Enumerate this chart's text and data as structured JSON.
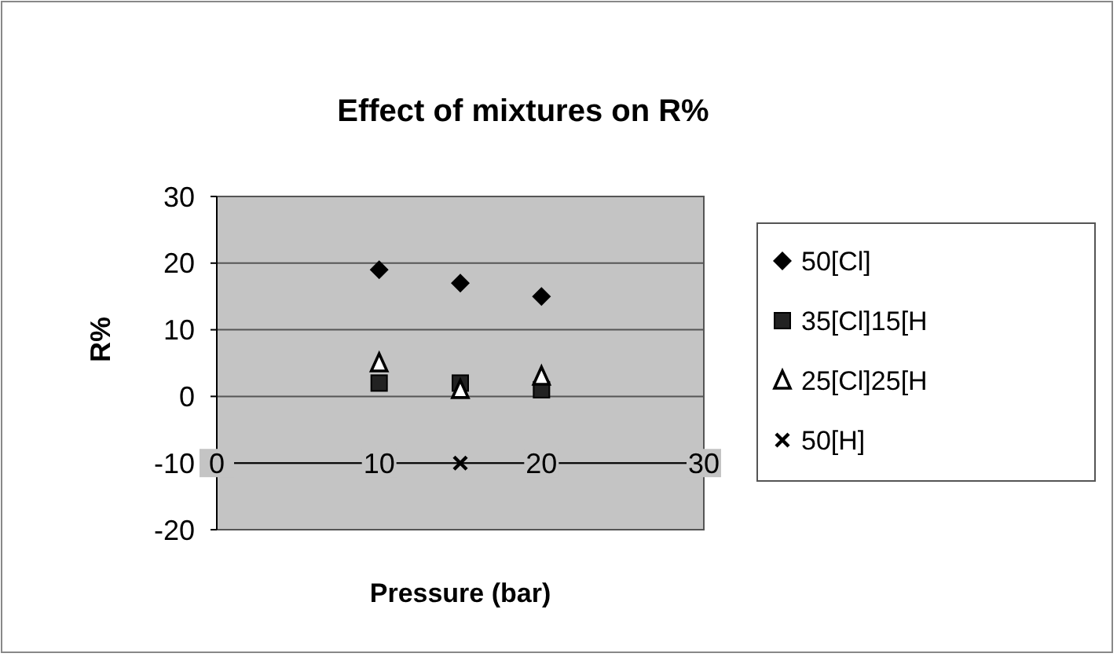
{
  "chart_data": {
    "type": "scatter",
    "title": "Effect of mixtures on R%",
    "xlabel": "Pressure (bar)",
    "ylabel": "R%",
    "x": [
      10,
      15,
      20
    ],
    "series": [
      {
        "name": "50[Cl]",
        "color": "#000000",
        "marker": "diamond",
        "values": [
          19,
          17,
          15
        ]
      },
      {
        "name": "35[Cl]15[H",
        "color": "#222222",
        "marker": "square",
        "values": [
          2,
          2,
          1
        ]
      },
      {
        "name": "25[Cl]25[H",
        "color": "#000000",
        "marker": "triangle",
        "values": [
          5,
          1,
          3
        ]
      },
      {
        "name": "50[H]",
        "color": "#000000",
        "marker": "cross",
        "values": [
          null,
          -10,
          null
        ]
      }
    ],
    "xlim": [
      0,
      30
    ],
    "xticks": [
      0,
      10,
      20,
      30
    ],
    "ylim": [
      -20,
      30
    ],
    "yticks": [
      -20,
      -10,
      0,
      10,
      20,
      30
    ],
    "grid": "y",
    "legend": "right"
  }
}
